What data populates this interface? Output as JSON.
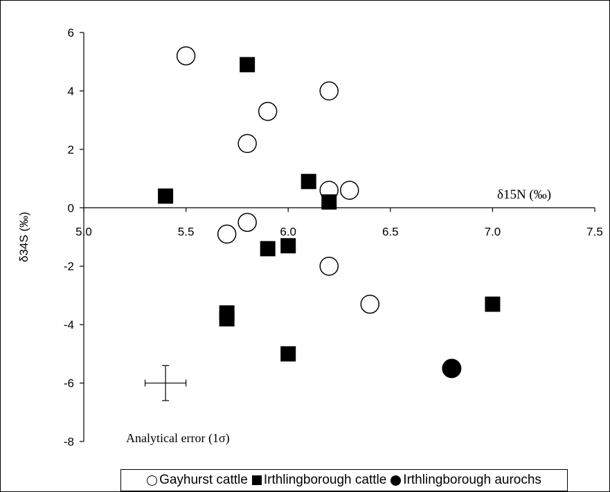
{
  "chart_data": {
    "type": "scatter",
    "title": "",
    "xlabel": "δ15N (‰)",
    "ylabel": "δ34S (‰)",
    "xlim": [
      5.0,
      7.5
    ],
    "ylim": [
      -8,
      6
    ],
    "x_ticks": [
      "5.0",
      "5.5",
      "6.0",
      "6.5",
      "7.0",
      "7.5"
    ],
    "y_ticks": [
      "6",
      "4",
      "2",
      "0",
      "-2",
      "-4",
      "-6",
      "-8"
    ],
    "legend_position": "bottom",
    "series": [
      {
        "name": "Gayhurst cattle",
        "marker": "open-circle",
        "points": [
          {
            "x": 5.5,
            "y": 5.2
          },
          {
            "x": 6.2,
            "y": 4.0
          },
          {
            "x": 5.9,
            "y": 3.3
          },
          {
            "x": 5.8,
            "y": 2.2
          },
          {
            "x": 6.2,
            "y": 0.6
          },
          {
            "x": 6.3,
            "y": 0.6
          },
          {
            "x": 5.8,
            "y": -0.5
          },
          {
            "x": 5.7,
            "y": -0.9
          },
          {
            "x": 6.2,
            "y": -2.0
          },
          {
            "x": 6.4,
            "y": -3.3
          }
        ]
      },
      {
        "name": "Irthlingborough cattle",
        "marker": "filled-square",
        "points": [
          {
            "x": 5.8,
            "y": 4.9
          },
          {
            "x": 6.1,
            "y": 0.9
          },
          {
            "x": 5.4,
            "y": 0.4
          },
          {
            "x": 6.2,
            "y": 0.2
          },
          {
            "x": 5.9,
            "y": -1.4
          },
          {
            "x": 6.0,
            "y": -1.3
          },
          {
            "x": 5.7,
            "y": -3.6
          },
          {
            "x": 5.7,
            "y": -3.8
          },
          {
            "x": 6.0,
            "y": -5.0
          },
          {
            "x": 7.0,
            "y": -3.3
          }
        ]
      },
      {
        "name": "Irthlingborough aurochs",
        "marker": "filled-circle",
        "points": [
          {
            "x": 6.8,
            "y": -5.5
          }
        ]
      }
    ],
    "error_annotation": {
      "label": "Analytical error (1σ)",
      "center": {
        "x": 5.4,
        "y": -6.0
      },
      "x_err": 0.1,
      "y_err": 0.6
    }
  },
  "legend": {
    "items": [
      {
        "label": "Gayhurst cattle",
        "marker": "open-circle"
      },
      {
        "label": "Irthlingborough cattle",
        "marker": "filled-square"
      },
      {
        "label": "Irthlingborough aurochs",
        "marker": "filled-circle"
      }
    ]
  }
}
